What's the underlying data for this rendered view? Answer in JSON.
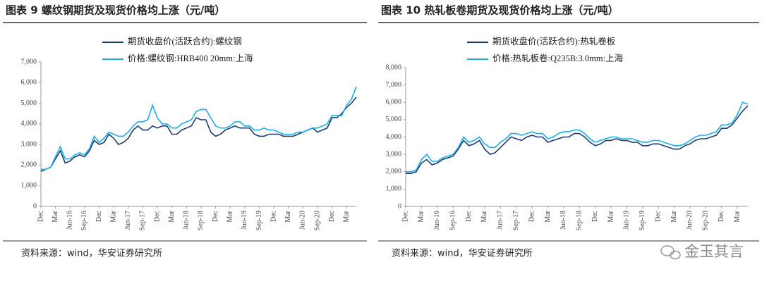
{
  "chart_data": [
    {
      "type": "line",
      "title": "图表 9  螺纹钢期货及现货价格均上涨（元/吨）",
      "source": "资料来源：wind，华安证券研究所",
      "categories": [
        "Dec",
        null,
        null,
        "Mar",
        null,
        null,
        "Jun-16",
        null,
        null,
        "Sep-16",
        null,
        null,
        "Dec",
        null,
        null,
        "Mar",
        null,
        null,
        "Jun-17",
        null,
        null,
        "Sep-17",
        null,
        null,
        "Dec",
        null,
        null,
        "Mar",
        null,
        null,
        "Jun-18",
        null,
        null,
        "Sep-18",
        null,
        null,
        "Dec",
        null,
        null,
        "Mar",
        null,
        null,
        "Jun-19",
        null,
        null,
        "Sep-19",
        null,
        null,
        "Dec",
        null,
        null,
        "Mar",
        null,
        null,
        "Jun-20",
        null,
        null,
        "Sep-20",
        null,
        null,
        "Dec",
        null,
        null,
        "Mar",
        null,
        null
      ],
      "series": [
        {
          "name": "期货收盘价(活跃合约):螺纹钢",
          "color": "#1f3a6e",
          "values": [
            1700,
            1800,
            1900,
            2300,
            2700,
            2100,
            2200,
            2400,
            2500,
            2400,
            2700,
            3200,
            3000,
            3100,
            3500,
            3300,
            3000,
            3100,
            3300,
            3700,
            3900,
            3700,
            3700,
            3900,
            3800,
            3900,
            3900,
            3500,
            3500,
            3700,
            3800,
            3900,
            4300,
            4200,
            4200,
            3600,
            3400,
            3500,
            3700,
            3800,
            3900,
            3800,
            3800,
            3800,
            3500,
            3400,
            3400,
            3500,
            3500,
            3500,
            3400,
            3400,
            3400,
            3500,
            3600,
            3700,
            3800,
            3600,
            3700,
            3800,
            4300,
            4300,
            4500,
            4800,
            5000,
            5300
          ]
        },
        {
          "name": "价格:螺纹钢:HRB400 20mm:上海",
          "color": "#1aafe6",
          "values": [
            1800,
            1800,
            1900,
            2400,
            2900,
            2300,
            2300,
            2500,
            2600,
            2500,
            2800,
            3400,
            3100,
            3300,
            3600,
            3500,
            3400,
            3400,
            3600,
            3900,
            4100,
            4100,
            4200,
            4900,
            4300,
            4000,
            4000,
            3800,
            3800,
            4000,
            4100,
            4200,
            4600,
            4700,
            4700,
            4300,
            3900,
            3800,
            3800,
            3900,
            4100,
            4100,
            3900,
            3900,
            3700,
            3700,
            3800,
            3700,
            3700,
            3600,
            3500,
            3500,
            3500,
            3600,
            3600,
            3700,
            3800,
            3800,
            3900,
            4000,
            4400,
            4400,
            4400,
            4900,
            5200,
            5800
          ]
        }
      ],
      "ylim": [
        0,
        7000
      ],
      "yticks": [
        0,
        {
          "value": 1000,
          "label": "1,000"
        },
        {
          "value": 2000,
          "label": "2,000"
        },
        {
          "value": 3000,
          "label": "3,000"
        },
        {
          "value": 4000,
          "label": "4,000"
        },
        {
          "value": 5000,
          "label": "5,000"
        },
        {
          "value": 6000,
          "label": "6,000"
        },
        {
          "value": 7000,
          "label": "7,000"
        }
      ]
    },
    {
      "type": "line",
      "title": "图表 10  热轧板卷期货及现货价格均上涨（元/吨）",
      "source": "资料来源：wind，华安证券研究所",
      "categories": [
        "Dec",
        null,
        null,
        "Mar",
        null,
        null,
        "Jun-16",
        null,
        null,
        "Sep-16",
        null,
        null,
        "Dec",
        null,
        null,
        "Mar",
        null,
        null,
        "Jun-17",
        null,
        null,
        "Sep-17",
        null,
        null,
        "Dec",
        null,
        null,
        "Mar",
        null,
        null,
        "Jun-18",
        null,
        null,
        "Sep-18",
        null,
        null,
        "Dec",
        null,
        null,
        "Mar",
        null,
        null,
        "Jun-19",
        null,
        null,
        "Sep-19",
        null,
        null,
        "Dec",
        null,
        null,
        "Mar",
        null,
        null,
        "Jun-20",
        null,
        null,
        "Sep-20",
        null,
        null,
        "Dec",
        null,
        null,
        "Mar",
        null,
        null
      ],
      "series": [
        {
          "name": "期货收盘价(活跃合约):热轧卷板",
          "color": "#1f3a6e",
          "values": [
            1900,
            1900,
            2000,
            2500,
            2700,
            2400,
            2500,
            2700,
            2800,
            2900,
            3300,
            3800,
            3500,
            3600,
            3800,
            3300,
            3000,
            3100,
            3400,
            3700,
            4000,
            3900,
            3800,
            4000,
            4100,
            4000,
            4000,
            3700,
            3800,
            3900,
            4000,
            4000,
            4200,
            4200,
            4000,
            3700,
            3500,
            3600,
            3800,
            3800,
            3900,
            3800,
            3800,
            3700,
            3700,
            3500,
            3500,
            3600,
            3600,
            3500,
            3400,
            3300,
            3300,
            3500,
            3600,
            3800,
            3900,
            3900,
            4000,
            4100,
            4500,
            4500,
            4700,
            5100,
            5500,
            5800
          ]
        },
        {
          "name": "价格:热轧板卷:Q235B:3.0mm:上海",
          "color": "#1aafe6",
          "values": [
            2000,
            2000,
            2100,
            2700,
            3000,
            2600,
            2600,
            2800,
            2900,
            3000,
            3400,
            4000,
            3700,
            3800,
            4000,
            3600,
            3400,
            3400,
            3700,
            3900,
            4200,
            4200,
            4100,
            4200,
            4300,
            4200,
            4200,
            3900,
            4000,
            4200,
            4300,
            4300,
            4400,
            4400,
            4200,
            3900,
            3700,
            3800,
            3900,
            4000,
            4000,
            3900,
            3900,
            3900,
            3800,
            3700,
            3700,
            3800,
            3800,
            3700,
            3600,
            3500,
            3500,
            3600,
            3800,
            4000,
            4100,
            4100,
            4200,
            4300,
            4700,
            4700,
            4800,
            5300,
            6000,
            5900
          ]
        }
      ],
      "ylim": [
        0,
        8000
      ],
      "yticks": [
        0,
        {
          "value": 1000,
          "label": "1,000"
        },
        {
          "value": 2000,
          "label": "2,000"
        },
        {
          "value": 3000,
          "label": "3,000"
        },
        {
          "value": 4000,
          "label": "4,000"
        },
        {
          "value": 5000,
          "label": "5,000"
        },
        {
          "value": 6000,
          "label": "6,000"
        },
        {
          "value": 7000,
          "label": "7,000"
        },
        {
          "value": 8000,
          "label": "8,000"
        }
      ]
    }
  ],
  "watermark": "金玉其言"
}
